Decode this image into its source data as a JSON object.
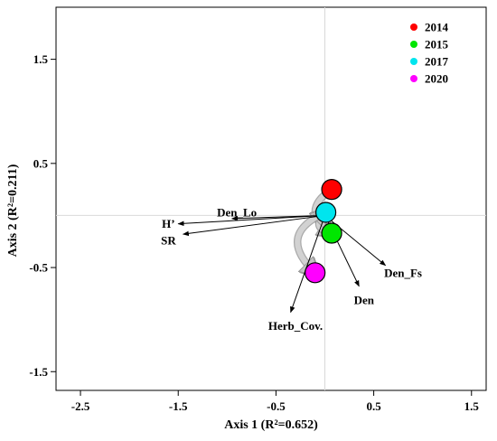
{
  "chart_data": {
    "type": "scatter",
    "subtype": "ordination-biplot",
    "xlabel": "Axis 1 (R²=0.652)",
    "ylabel": "Axis 2 (R²=0.211)",
    "xlim": [
      -2.75,
      1.65
    ],
    "ylim": [
      -1.68,
      2.0
    ],
    "xticks": [
      -2.5,
      -1.5,
      -0.5,
      0.5,
      1.5
    ],
    "xtick_labels": [
      "-2.5",
      "-1.5",
      "-0.5",
      "0.5",
      "1.5"
    ],
    "yticks": [
      -1.5,
      -0.5,
      0.5,
      1.5
    ],
    "ytick_labels": [
      "-1.5",
      "-0.5",
      "0.5",
      "1.5"
    ],
    "grid": false,
    "zero_lines": true,
    "legend_position": "top-right",
    "points": [
      {
        "label": "2014",
        "x": 0.07,
        "y": 0.25,
        "color": "#ff0000"
      },
      {
        "label": "2017",
        "x": 0.01,
        "y": 0.03,
        "color": "#00e5ee"
      },
      {
        "label": "2015",
        "x": 0.07,
        "y": -0.17,
        "color": "#00e600"
      },
      {
        "label": "2020",
        "x": -0.1,
        "y": -0.55,
        "color": "#ff00ff"
      }
    ],
    "trajectory_order": [
      "2014",
      "2015",
      "2017",
      "2020"
    ],
    "vectors": [
      {
        "label": "Den_Lo",
        "x": -0.95,
        "y": -0.03
      },
      {
        "label": "H’",
        "x": -1.5,
        "y": -0.08
      },
      {
        "label": "SR",
        "x": -1.45,
        "y": -0.18
      },
      {
        "label": "Den_Fs",
        "x": 0.62,
        "y": -0.48
      },
      {
        "label": "Den",
        "x": 0.35,
        "y": -0.68
      },
      {
        "label": "Herb_Cov.",
        "x": -0.35,
        "y": -0.93
      }
    ],
    "vector_labels": [
      {
        "label": "Den_Lo",
        "x": -0.9,
        "y": 0.03
      },
      {
        "label": "H’",
        "x": -1.6,
        "y": -0.08
      },
      {
        "label": "SR",
        "x": -1.6,
        "y": -0.24
      },
      {
        "label": "Den_Fs",
        "x": 0.8,
        "y": -0.55
      },
      {
        "label": "Den",
        "x": 0.4,
        "y": -0.81
      },
      {
        "label": "Herb_Cov.",
        "x": -0.3,
        "y": -1.06
      }
    ],
    "legend": [
      {
        "label": "2014",
        "color": "#ff0000"
      },
      {
        "label": "2015",
        "color": "#00e600"
      },
      {
        "label": "2017",
        "color": "#00e5ee"
      },
      {
        "label": "2020",
        "color": "#ff00ff"
      }
    ]
  }
}
